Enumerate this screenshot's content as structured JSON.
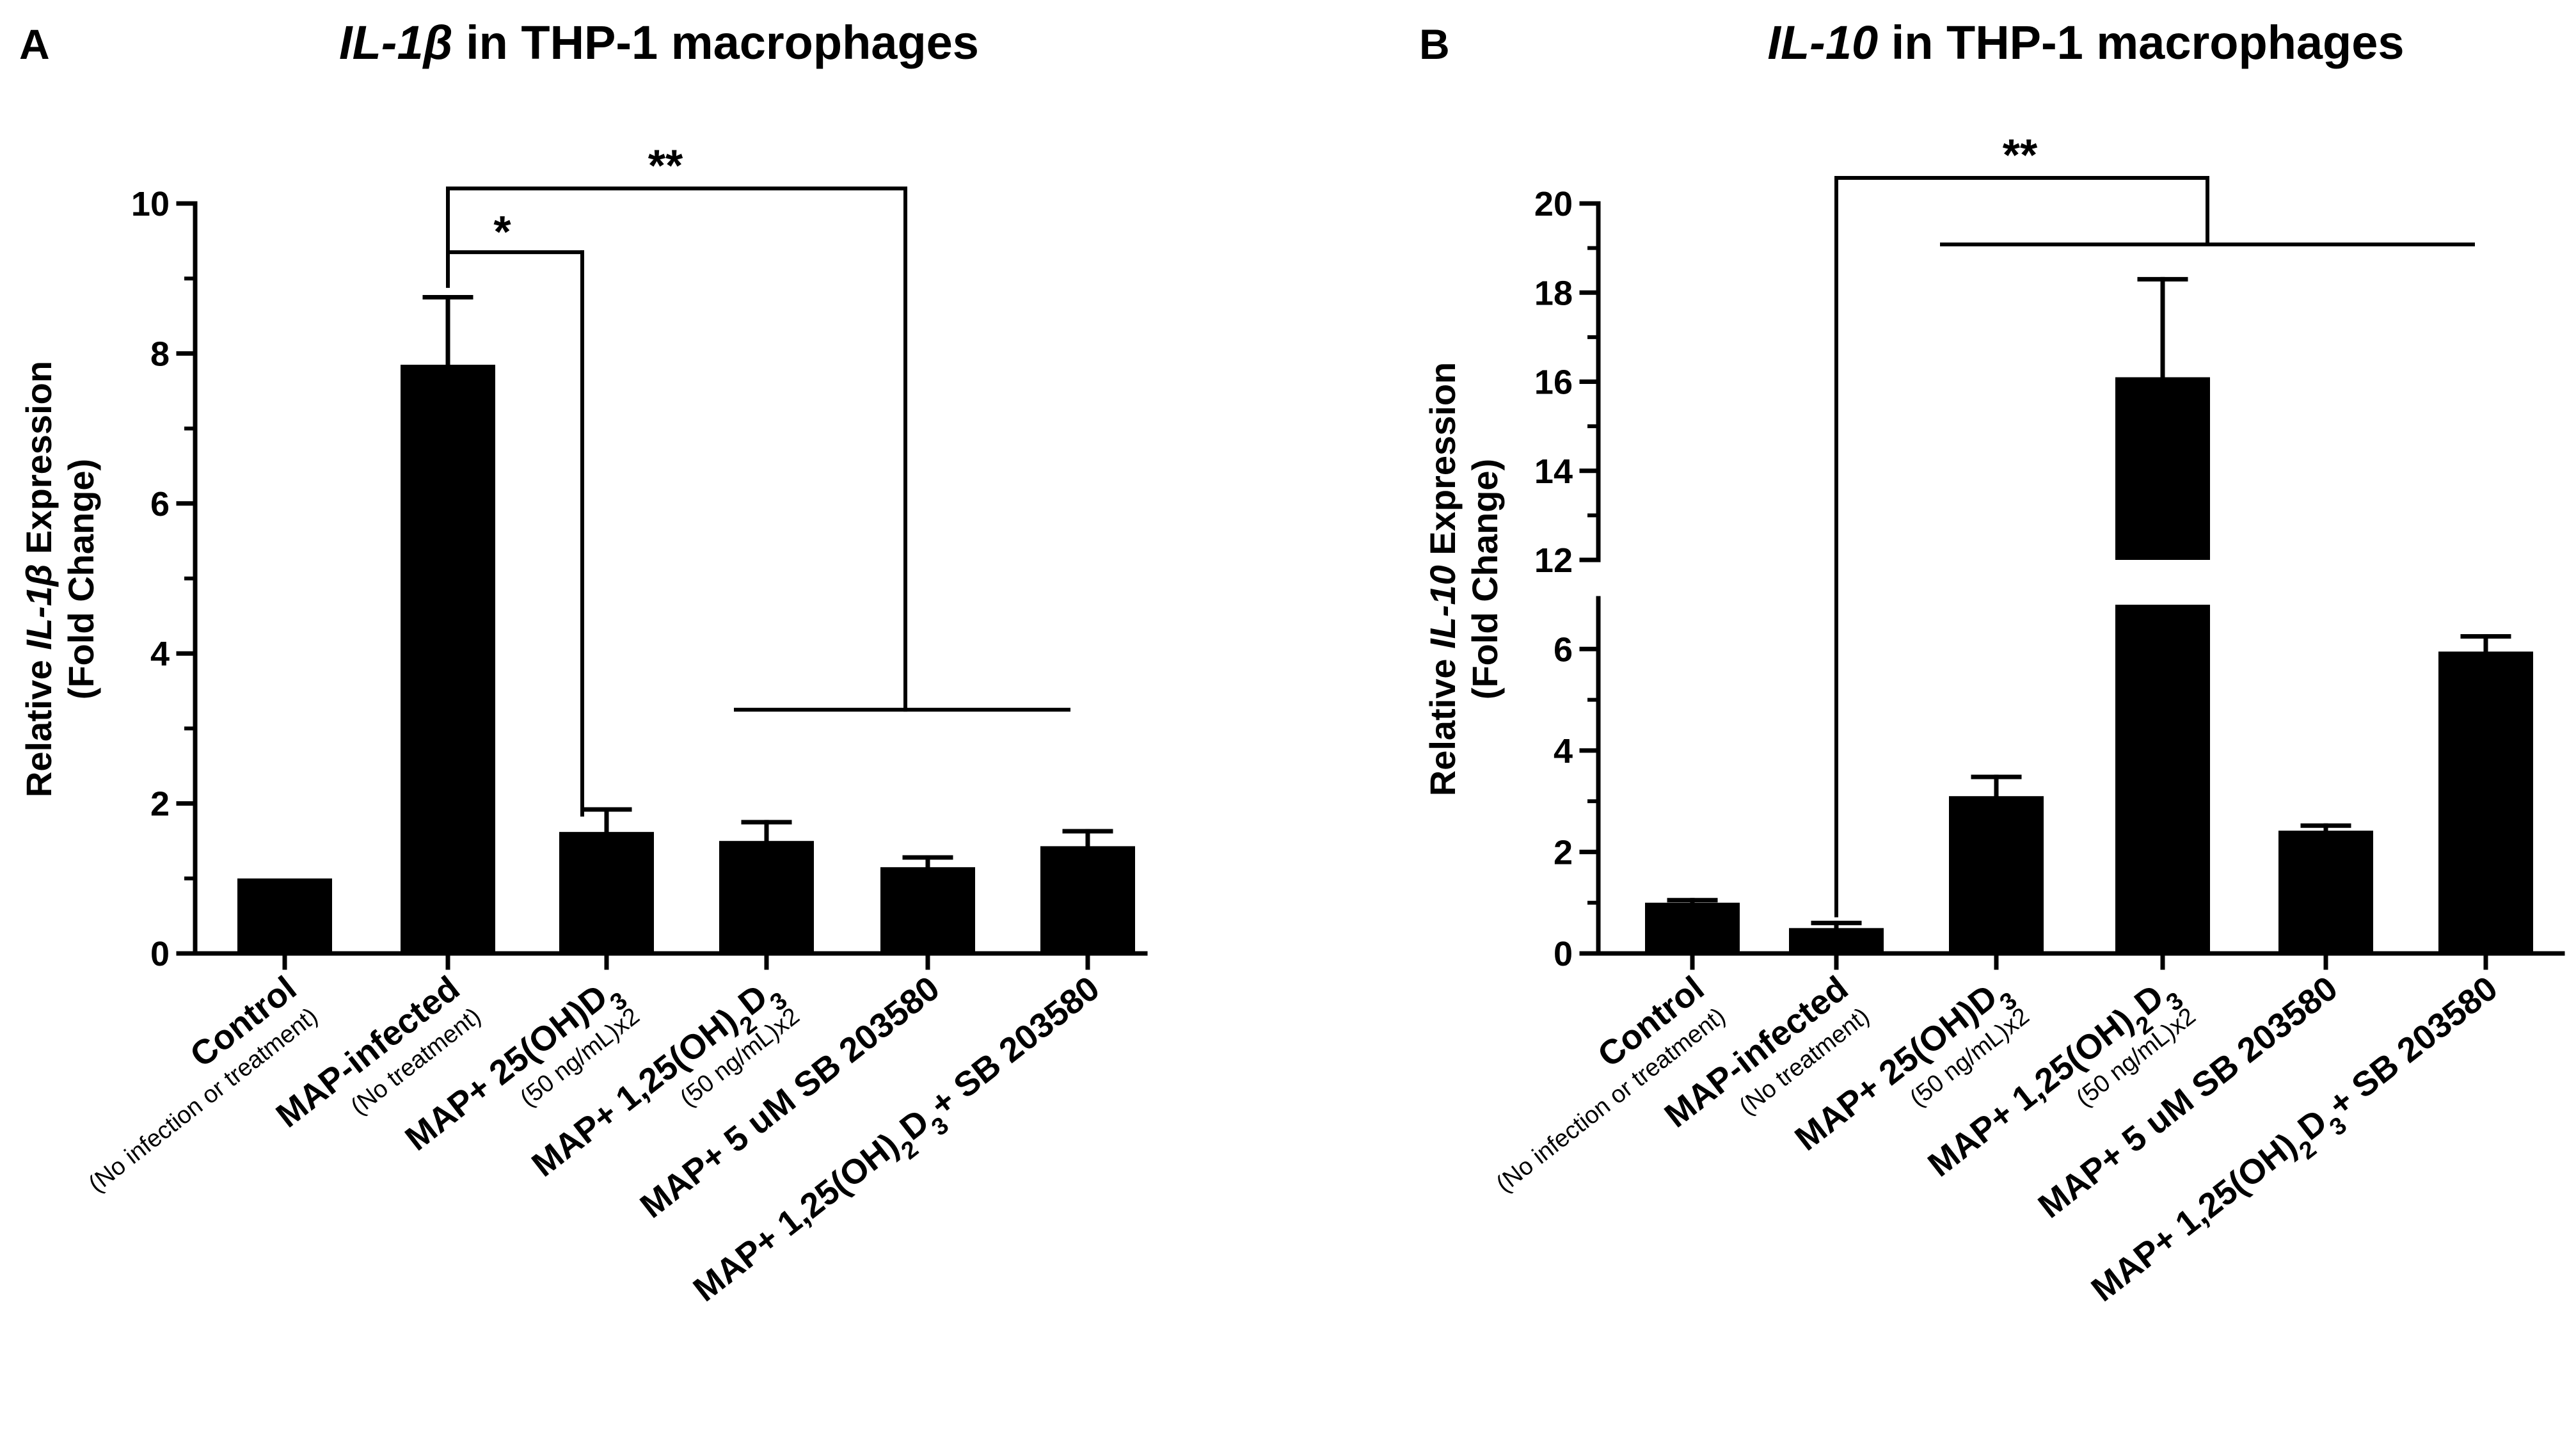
{
  "chart_data": [
    {
      "type": "bar",
      "panel_label": "A",
      "title": {
        "gene": "IL-1β",
        "rest": " in THP-1 macrophages"
      },
      "ylabel": {
        "prefix": "Relative ",
        "gene": "IL-1β",
        "suffix": " Expression",
        "line2": "(Fold Change)"
      },
      "ylim": [
        0,
        10
      ],
      "yticks": [
        "0",
        "2",
        "4",
        "6",
        "8",
        "10"
      ],
      "categories": [
        {
          "main": [
            [
              "Control",
              false
            ]
          ],
          "note": "(No infection or treatment)"
        },
        {
          "main": [
            [
              "MAP-infected",
              false
            ]
          ],
          "note": "(No treatment)"
        },
        {
          "main": [
            [
              "MAP+ 25(OH)D",
              false
            ],
            [
              "3",
              true
            ]
          ],
          "note": "(50 ng/mL)x2"
        },
        {
          "main": [
            [
              "MAP+ 1,25(OH)",
              false
            ],
            [
              "2",
              true
            ],
            [
              "D",
              false
            ],
            [
              "3",
              true
            ]
          ],
          "note": "(50 ng/mL)x2"
        },
        {
          "main": [
            [
              "MAP+ 5 uM SB 203580",
              false
            ]
          ],
          "note": ""
        },
        {
          "main": [
            [
              "MAP+ 1,25(OH)",
              false
            ],
            [
              "2",
              true
            ],
            [
              "D",
              false
            ],
            [
              "3",
              true
            ],
            [
              "+ SB 203580",
              false
            ]
          ],
          "note": ""
        }
      ],
      "values": [
        1.0,
        7.85,
        1.62,
        1.5,
        1.15,
        1.43
      ],
      "errors": [
        0.0,
        0.9,
        0.3,
        0.25,
        0.13,
        0.2
      ],
      "significance": [
        {
          "label": "**",
          "from": 1,
          "to": "4-6"
        },
        {
          "label": "*",
          "from": 1,
          "to": 2
        }
      ],
      "color": "#000000"
    },
    {
      "type": "bar",
      "panel_label": "B",
      "title": {
        "gene": "IL-10",
        "rest": " in THP-1 macrophages"
      },
      "ylabel": {
        "prefix": "Relative ",
        "gene": "IL-10",
        "suffix": " Expression",
        "line2": "(Fold Change)"
      },
      "ylim": [
        0,
        20
      ],
      "axis_break": [
        7,
        12
      ],
      "yticks_lower": [
        "0",
        "2",
        "4",
        "6"
      ],
      "yticks_upper": [
        "12",
        "14",
        "16",
        "18",
        "20"
      ],
      "categories": [
        {
          "main": [
            [
              "Control",
              false
            ]
          ],
          "note": "(No infection or treatment)"
        },
        {
          "main": [
            [
              "MAP-infected",
              false
            ]
          ],
          "note": "(No treatment)"
        },
        {
          "main": [
            [
              "MAP+ 25(OH)D",
              false
            ],
            [
              "3",
              true
            ]
          ],
          "note": "(50 ng/mL)x2"
        },
        {
          "main": [
            [
              "MAP+ 1,25(OH)",
              false
            ],
            [
              "2",
              true
            ],
            [
              "D",
              false
            ],
            [
              "3",
              true
            ]
          ],
          "note": "(50 ng/mL)x2"
        },
        {
          "main": [
            [
              "MAP+ 5 uM SB 203580",
              false
            ]
          ],
          "note": ""
        },
        {
          "main": [
            [
              "MAP+ 1,25(OH)",
              false
            ],
            [
              "2",
              true
            ],
            [
              "D",
              false
            ],
            [
              "3",
              true
            ],
            [
              "+ SB 203580",
              false
            ]
          ],
          "note": ""
        }
      ],
      "values": [
        1.0,
        0.5,
        3.1,
        16.1,
        2.42,
        5.95
      ],
      "errors": [
        0.05,
        0.1,
        0.38,
        2.2,
        0.1,
        0.3
      ],
      "significance": [
        {
          "label": "**",
          "from": 1,
          "to": "3-6"
        }
      ],
      "color": "#000000"
    }
  ]
}
